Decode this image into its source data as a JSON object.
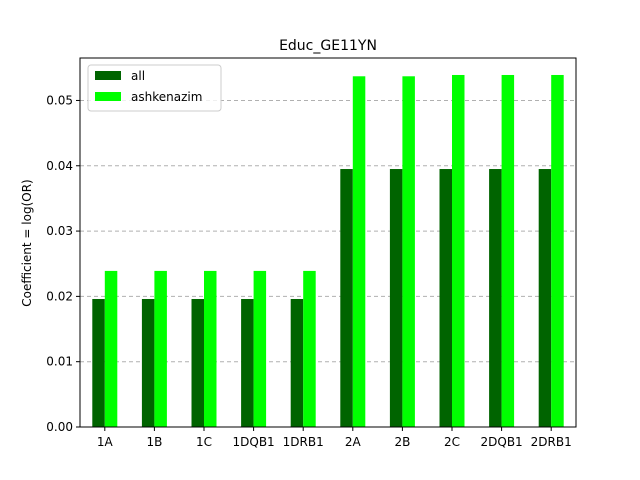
{
  "chart_data": {
    "type": "bar",
    "title": "Educ_GE11YN",
    "xlabel": "",
    "ylabel": "Coefficient = log(OR)",
    "categories": [
      "1A",
      "1B",
      "1C",
      "1DQB1",
      "1DRB1",
      "2A",
      "2B",
      "2C",
      "2DQB1",
      "2DRB1"
    ],
    "series": [
      {
        "name": "all",
        "color": "#006400",
        "values": [
          0.0196,
          0.0196,
          0.0196,
          0.0196,
          0.0196,
          0.0395,
          0.0395,
          0.0395,
          0.0395,
          0.0395
        ]
      },
      {
        "name": "ashkenazim",
        "color": "#00ff00",
        "values": [
          0.0239,
          0.0239,
          0.0239,
          0.0239,
          0.0239,
          0.0537,
          0.0537,
          0.0539,
          0.0539,
          0.0539
        ]
      }
    ],
    "ylim": [
      0,
      0.0565
    ],
    "yticks": [
      "0.00",
      "0.01",
      "0.02",
      "0.03",
      "0.04",
      "0.05"
    ],
    "grid": "y-dashed",
    "legend_position": "top-left"
  }
}
